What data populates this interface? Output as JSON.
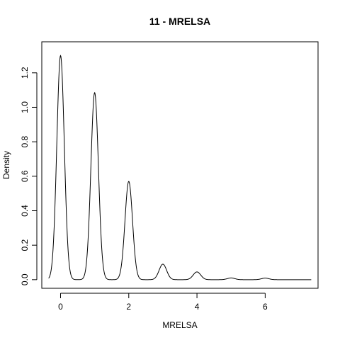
{
  "chart_data": {
    "type": "line",
    "title": "11 - MRELSA",
    "xlabel": "MRELSA",
    "ylabel": "Density",
    "xlim": [
      -0.55,
      7.55
    ],
    "ylim": [
      -0.05,
      1.38
    ],
    "xticks": [
      0,
      2,
      4,
      6
    ],
    "xtick_labels": [
      "0",
      "2",
      "4",
      "6"
    ],
    "yticks": [
      0,
      0.2,
      0.4,
      0.6,
      0.8,
      1.0,
      1.2
    ],
    "ytick_labels": [
      "0.0",
      "0.2",
      "0.4",
      "0.6",
      "0.8",
      "1.0",
      "1.2"
    ],
    "grid": false,
    "legend": "none",
    "line_color": "#000000",
    "series": [
      {
        "peaks": [
          {
            "x": 0,
            "y": 1.3
          },
          {
            "x": 1,
            "y": 1.085
          },
          {
            "x": 2,
            "y": 0.57
          },
          {
            "x": 3,
            "y": 0.09
          },
          {
            "x": 4,
            "y": 0.045
          },
          {
            "x": 5,
            "y": 0.01
          },
          {
            "x": 6,
            "y": 0.009
          }
        ],
        "bandwidth": 0.11,
        "x_range": [
          -0.35,
          7.35
        ]
      }
    ]
  }
}
